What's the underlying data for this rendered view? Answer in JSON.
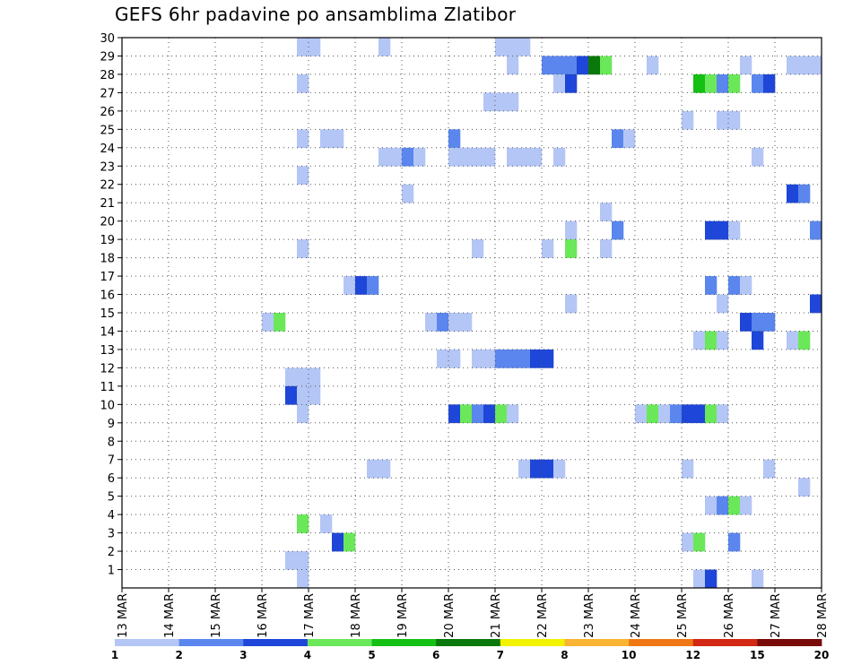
{
  "chart_data": {
    "type": "heatmap",
    "title": "GEFS 6hr padavine po ansamblima Zlatibor",
    "xlabel": "",
    "ylabel": "",
    "x_ticks": [
      "13 MAR",
      "14 MAR",
      "15 MAR",
      "16 MAR",
      "17 MAR",
      "18 MAR",
      "19 MAR",
      "20 MAR",
      "21 MAR",
      "22 MAR",
      "23 MAR",
      "24 MAR",
      "25 MAR",
      "26 MAR",
      "27 MAR",
      "28 MAR"
    ],
    "xlim_days": [
      13,
      28
    ],
    "y_ticks": [
      "1",
      "2",
      "3",
      "4",
      "5",
      "6",
      "7",
      "8",
      "9",
      "10",
      "11",
      "12",
      "13",
      "14",
      "15",
      "16",
      "17",
      "18",
      "19",
      "20",
      "21",
      "22",
      "23",
      "24",
      "25",
      "26",
      "27",
      "28",
      "29",
      "30"
    ],
    "ylim": [
      0,
      30
    ],
    "grid": true,
    "colorbar": {
      "placement": "bottom",
      "labels": [
        "1",
        "2",
        "3",
        "4",
        "5",
        "6",
        "7",
        "8",
        "10",
        "12",
        "15",
        "20"
      ],
      "colors": [
        "#b4c6f5",
        "#5a86ee",
        "#1e46d8",
        "#6ae85a",
        "#14c014",
        "#0a780a",
        "#f2f200",
        "#f8b432",
        "#f07814",
        "#d22814",
        "#780a0a"
      ]
    },
    "cell_days": 0.25,
    "cells": [
      [
        16.75,
        29,
        1
      ],
      [
        17.0,
        29,
        1
      ],
      [
        18.5,
        29,
        1
      ],
      [
        21.0,
        29,
        1
      ],
      [
        21.25,
        29,
        1
      ],
      [
        21.5,
        29,
        1
      ],
      [
        21.25,
        28,
        1
      ],
      [
        22.0,
        28,
        2
      ],
      [
        22.25,
        28,
        2
      ],
      [
        22.5,
        28,
        2
      ],
      [
        22.75,
        28,
        3
      ],
      [
        23.0,
        28,
        6
      ],
      [
        23.25,
        28,
        4
      ],
      [
        24.25,
        28,
        1
      ],
      [
        26.25,
        28,
        1
      ],
      [
        27.25,
        28,
        1
      ],
      [
        27.5,
        28,
        1
      ],
      [
        27.75,
        28,
        1
      ],
      [
        16.75,
        27,
        1
      ],
      [
        22.25,
        27,
        1
      ],
      [
        22.5,
        27,
        3
      ],
      [
        25.25,
        27,
        5
      ],
      [
        25.5,
        27,
        4
      ],
      [
        25.75,
        27,
        2
      ],
      [
        26.0,
        27,
        4
      ],
      [
        26.5,
        27,
        2
      ],
      [
        26.75,
        27,
        3
      ],
      [
        20.75,
        26,
        1
      ],
      [
        21.0,
        26,
        1
      ],
      [
        21.25,
        26,
        1
      ],
      [
        25.0,
        25,
        1
      ],
      [
        25.75,
        25,
        1
      ],
      [
        26.0,
        25,
        1
      ],
      [
        16.75,
        24,
        1
      ],
      [
        17.25,
        24,
        1
      ],
      [
        17.5,
        24,
        1
      ],
      [
        20.0,
        24,
        2
      ],
      [
        23.5,
        24,
        2
      ],
      [
        23.75,
        24,
        1
      ],
      [
        18.5,
        23,
        1
      ],
      [
        18.75,
        23,
        1
      ],
      [
        19.0,
        23,
        2
      ],
      [
        19.25,
        23,
        1
      ],
      [
        20.0,
        23,
        1
      ],
      [
        20.25,
        23,
        1
      ],
      [
        20.5,
        23,
        1
      ],
      [
        20.75,
        23,
        1
      ],
      [
        21.25,
        23,
        1
      ],
      [
        21.5,
        23,
        1
      ],
      [
        21.75,
        23,
        1
      ],
      [
        22.25,
        23,
        1
      ],
      [
        26.5,
        23,
        1
      ],
      [
        16.75,
        22,
        1
      ],
      [
        19.0,
        21,
        1
      ],
      [
        27.25,
        21,
        3
      ],
      [
        27.5,
        21,
        2
      ],
      [
        23.25,
        20,
        1
      ],
      [
        22.5,
        19,
        1
      ],
      [
        23.5,
        19,
        2
      ],
      [
        25.5,
        19,
        3
      ],
      [
        25.75,
        19,
        3
      ],
      [
        26.0,
        19,
        1
      ],
      [
        27.75,
        19,
        2
      ],
      [
        16.75,
        18,
        1
      ],
      [
        20.5,
        18,
        1
      ],
      [
        22.0,
        18,
        1
      ],
      [
        22.5,
        18,
        4
      ],
      [
        23.25,
        18,
        1
      ],
      [
        17.75,
        16,
        1
      ],
      [
        18.0,
        16,
        3
      ],
      [
        18.25,
        16,
        2
      ],
      [
        25.5,
        16,
        2
      ],
      [
        26.0,
        16,
        2
      ],
      [
        26.25,
        16,
        1
      ],
      [
        22.5,
        15,
        1
      ],
      [
        25.75,
        15,
        1
      ],
      [
        27.75,
        15,
        3
      ],
      [
        16.0,
        14,
        1
      ],
      [
        16.25,
        14,
        4
      ],
      [
        19.5,
        14,
        1
      ],
      [
        19.75,
        14,
        2
      ],
      [
        20.0,
        14,
        1
      ],
      [
        20.25,
        14,
        1
      ],
      [
        26.25,
        14,
        3
      ],
      [
        26.5,
        14,
        2
      ],
      [
        26.75,
        14,
        2
      ],
      [
        25.25,
        13,
        1
      ],
      [
        25.5,
        13,
        4
      ],
      [
        25.75,
        13,
        1
      ],
      [
        26.5,
        13,
        3
      ],
      [
        27.25,
        13,
        1
      ],
      [
        27.5,
        13,
        4
      ],
      [
        19.75,
        12,
        1
      ],
      [
        20.0,
        12,
        1
      ],
      [
        20.5,
        12,
        1
      ],
      [
        20.75,
        12,
        1
      ],
      [
        21.0,
        12,
        2
      ],
      [
        21.25,
        12,
        2
      ],
      [
        21.5,
        12,
        2
      ],
      [
        21.75,
        12,
        3
      ],
      [
        22.0,
        12,
        3
      ],
      [
        16.5,
        11,
        1
      ],
      [
        16.75,
        11,
        1
      ],
      [
        17.0,
        11,
        1
      ],
      [
        16.5,
        10,
        3
      ],
      [
        16.75,
        10,
        1
      ],
      [
        17.0,
        10,
        1
      ],
      [
        16.75,
        9,
        1
      ],
      [
        20.0,
        9,
        3
      ],
      [
        20.25,
        9,
        4
      ],
      [
        20.5,
        9,
        2
      ],
      [
        20.75,
        9,
        3
      ],
      [
        21.0,
        9,
        4
      ],
      [
        21.25,
        9,
        1
      ],
      [
        24.0,
        9,
        1
      ],
      [
        24.25,
        9,
        4
      ],
      [
        24.5,
        9,
        1
      ],
      [
        24.75,
        9,
        2
      ],
      [
        25.0,
        9,
        3
      ],
      [
        25.25,
        9,
        3
      ],
      [
        25.5,
        9,
        4
      ],
      [
        25.75,
        9,
        1
      ],
      [
        18.25,
        6,
        1
      ],
      [
        18.5,
        6,
        1
      ],
      [
        21.5,
        6,
        1
      ],
      [
        21.75,
        6,
        3
      ],
      [
        22.0,
        6,
        3
      ],
      [
        22.25,
        6,
        1
      ],
      [
        25.0,
        6,
        1
      ],
      [
        26.75,
        6,
        1
      ],
      [
        27.5,
        5,
        1
      ],
      [
        25.5,
        4,
        1
      ],
      [
        25.75,
        4,
        2
      ],
      [
        26.0,
        4,
        4
      ],
      [
        26.25,
        4,
        1
      ],
      [
        16.75,
        3,
        4
      ],
      [
        17.25,
        3,
        1
      ],
      [
        17.5,
        2,
        3
      ],
      [
        17.75,
        2,
        4
      ],
      [
        25.0,
        2,
        1
      ],
      [
        25.25,
        2,
        4
      ],
      [
        26.0,
        2,
        2
      ],
      [
        16.5,
        1,
        1
      ],
      [
        16.75,
        1,
        1
      ],
      [
        16.75,
        0,
        1
      ],
      [
        25.25,
        0,
        1
      ],
      [
        25.5,
        0,
        3
      ],
      [
        26.5,
        0,
        1
      ]
    ]
  }
}
